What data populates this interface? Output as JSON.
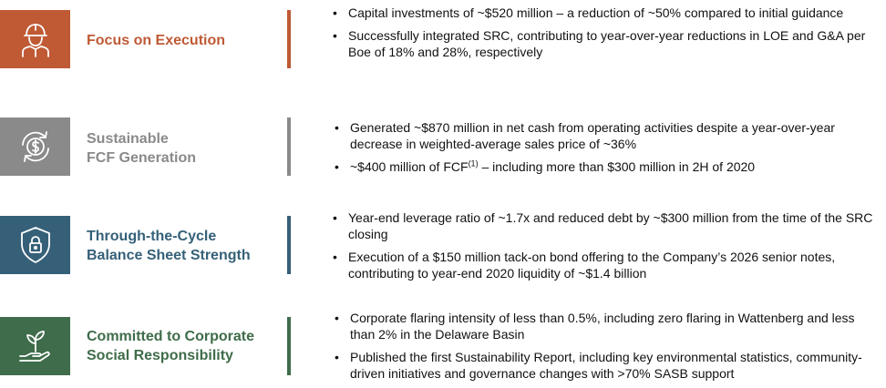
{
  "colors": {
    "execution": "#bf5a35",
    "fcf": "#8a8a8a",
    "balance": "#356078",
    "social": "#3f6c4a"
  },
  "rows": [
    {
      "label_lines": [
        "Focus on Execution"
      ],
      "icon": "worker-hardhat-icon",
      "bullets": [
        "Capital investments of ~$520 million – a reduction of ~50% compared to initial guidance",
        "Successfully integrated SRC, contributing to year-over-year reductions in LOE and G&A per Boe of 18% and 28%, respectively"
      ]
    },
    {
      "label_lines": [
        "Sustainable",
        "FCF Generation"
      ],
      "icon": "dollar-cycle-icon",
      "bullets": [
        "Generated ~$870 million in net cash from operating activities despite a year-over-year decrease in weighted-average sales price of ~36%"
      ],
      "fcf_bullet": {
        "before": "~$400 million of FCF",
        "sup": "(1)",
        "after": " – including more than $300 million in 2H of 2020"
      }
    },
    {
      "label_lines": [
        "Through-the-Cycle",
        "Balance Sheet Strength"
      ],
      "icon": "shield-lock-icon",
      "bullets": [
        "Year-end leverage ratio of ~1.7x and reduced debt by ~$300 million from the time of the SRC closing",
        "Execution of a $150 million tack-on bond offering to the Company’s 2026 senior notes, contributing to year-end 2020 liquidity of ~$1.4 billion"
      ]
    },
    {
      "label_lines": [
        "Committed to Corporate",
        "Social Responsibility"
      ],
      "icon": "hand-plant-icon",
      "bullets": [
        "Corporate flaring intensity of less than 0.5%, including zero flaring in Wattenberg and less than 2% in the Delaware Basin",
        "Published the first Sustainability Report, including key environmental statistics, community-driven initiatives and governance changes with >70% SASB support"
      ]
    }
  ]
}
